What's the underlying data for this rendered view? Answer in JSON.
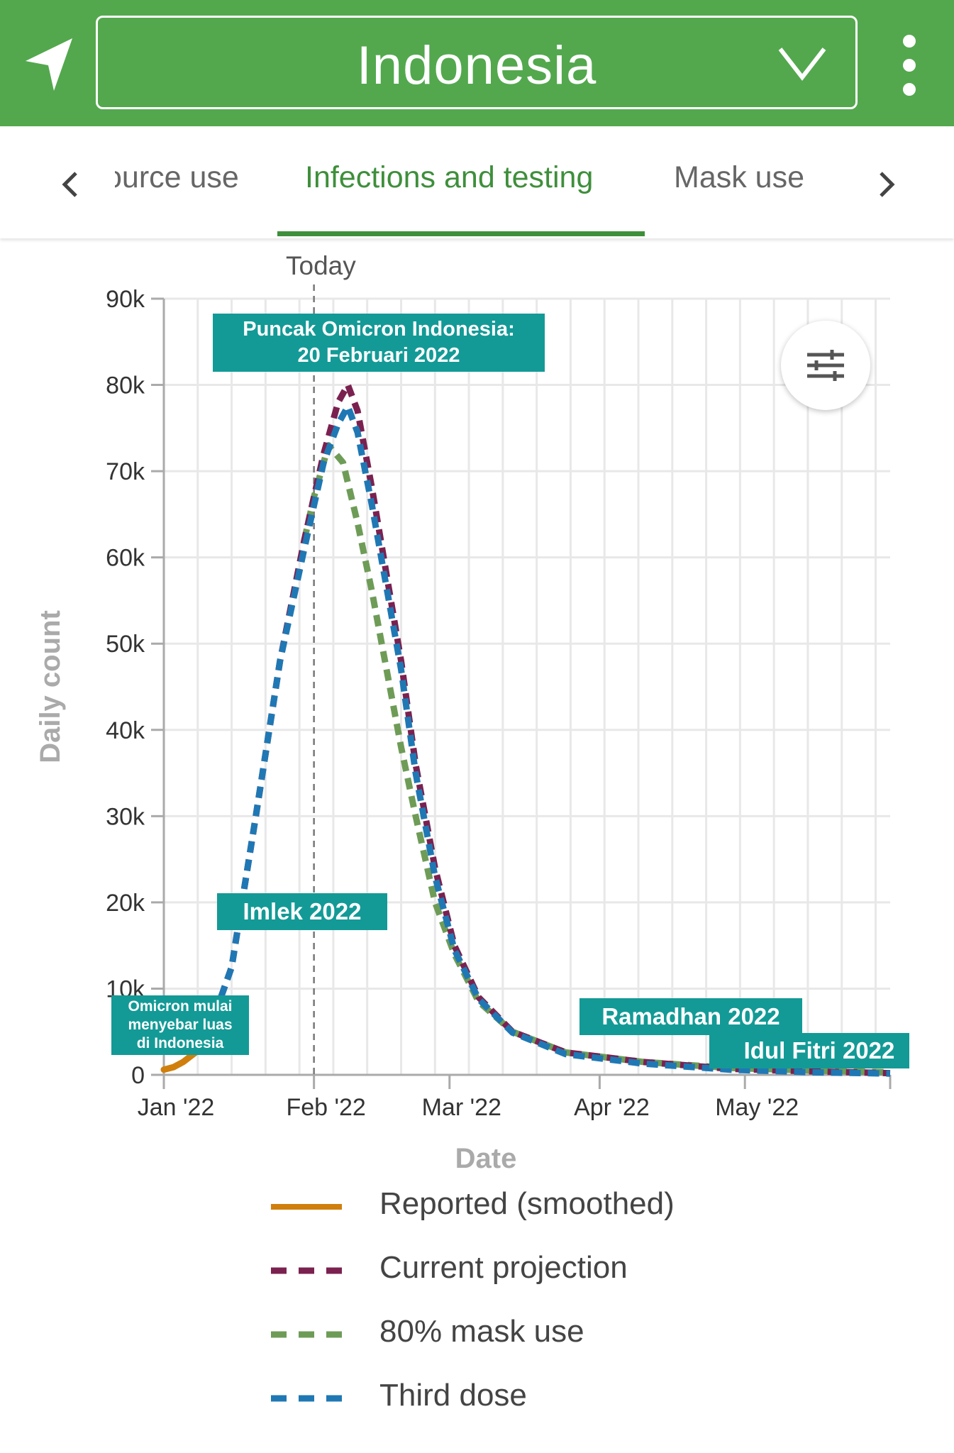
{
  "appbar": {
    "country": "Indonesia",
    "background": "#53a84e",
    "icons": {
      "nav": "navigation-arrow-icon",
      "dropdown": "chevron-down-icon",
      "more": "more-vertical-icon"
    }
  },
  "tabs": {
    "items": [
      {
        "label": "Resource use",
        "visible_text": "ource use"
      },
      {
        "label": "Infections and testing",
        "active": true
      },
      {
        "label": "Mask use"
      }
    ],
    "accent": "#3e8f3b"
  },
  "chart": {
    "today_label": "Today",
    "annotations": {
      "peak": [
        "Puncak Omicron Indonesia:",
        "20 Februari 2022"
      ],
      "omicron_spread": [
        "Omicron mulai",
        "menyebar luas",
        "di Indonesia"
      ],
      "imlek": "Imlek 2022",
      "ramadhan": "Ramadhan 2022",
      "idul_fitri": "Idul Fitri 2022"
    },
    "annotation_color": "#139a96"
  },
  "chart_data": {
    "type": "line",
    "xlabel": "Date",
    "ylabel": "Daily count",
    "x_ticks": [
      "Jan '22",
      "Feb '22",
      "Mar '22",
      "Apr '22",
      "May '22"
    ],
    "y_ticks": [
      "0",
      "10k",
      "20k",
      "30k",
      "40k",
      "50k",
      "60k",
      "70k",
      "80k",
      "90k"
    ],
    "ylim": [
      0,
      90000
    ],
    "xlim": [
      "2022-01-01",
      "2022-05-31"
    ],
    "today": "2022-02-01",
    "grid": true,
    "series": [
      {
        "name": "Reported (smoothed)",
        "color": "#d07f0d",
        "style": "solid",
        "points": [
          [
            "2022-01-01",
            600
          ],
          [
            "2022-01-03",
            900
          ],
          [
            "2022-01-05",
            1500
          ],
          [
            "2022-01-08",
            2800
          ]
        ]
      },
      {
        "name": "Current projection",
        "color": "#7b2150",
        "style": "dashed",
        "points": [
          [
            "2022-01-09",
            3000
          ],
          [
            "2022-01-15",
            12500
          ],
          [
            "2022-01-20",
            30000
          ],
          [
            "2022-01-25",
            48000
          ],
          [
            "2022-01-30",
            62000
          ],
          [
            "2022-02-01",
            67000
          ],
          [
            "2022-02-03",
            72000
          ],
          [
            "2022-02-06",
            78000
          ],
          [
            "2022-02-08",
            80000
          ],
          [
            "2022-02-10",
            77000
          ],
          [
            "2022-02-13",
            68000
          ],
          [
            "2022-02-16",
            58000
          ],
          [
            "2022-02-19",
            48000
          ],
          [
            "2022-02-22",
            36000
          ],
          [
            "2022-02-26",
            24000
          ],
          [
            "2022-03-02",
            15000
          ],
          [
            "2022-03-07",
            9000
          ],
          [
            "2022-03-14",
            5000
          ],
          [
            "2022-03-25",
            2600
          ],
          [
            "2022-04-10",
            1500
          ],
          [
            "2022-04-28",
            700
          ],
          [
            "2022-05-15",
            400
          ],
          [
            "2022-05-31",
            200
          ]
        ]
      },
      {
        "name": "80% mask use",
        "color": "#6e9c57",
        "style": "dashed",
        "points": [
          [
            "2022-01-30",
            62000
          ],
          [
            "2022-02-01",
            67000
          ],
          [
            "2022-02-04",
            73000
          ],
          [
            "2022-02-07",
            71000
          ],
          [
            "2022-02-10",
            64000
          ],
          [
            "2022-02-13",
            56000
          ],
          [
            "2022-02-16",
            47000
          ],
          [
            "2022-02-19",
            38000
          ],
          [
            "2022-02-22",
            30000
          ],
          [
            "2022-02-26",
            20000
          ],
          [
            "2022-03-02",
            14000
          ],
          [
            "2022-03-07",
            8500
          ],
          [
            "2022-03-14",
            5000
          ],
          [
            "2022-03-25",
            2600
          ],
          [
            "2022-04-10",
            1500
          ],
          [
            "2022-04-28",
            800
          ],
          [
            "2022-05-15",
            500
          ],
          [
            "2022-05-31",
            300
          ]
        ]
      },
      {
        "name": "Third dose",
        "color": "#1f78b4",
        "style": "dashed",
        "points": [
          [
            "2022-01-09",
            3000
          ],
          [
            "2022-01-15",
            12500
          ],
          [
            "2022-01-20",
            30000
          ],
          [
            "2022-01-25",
            48000
          ],
          [
            "2022-01-30",
            61000
          ],
          [
            "2022-02-01",
            66000
          ],
          [
            "2022-02-03",
            71000
          ],
          [
            "2022-02-06",
            75500
          ],
          [
            "2022-02-08",
            77500
          ],
          [
            "2022-02-10",
            74500
          ],
          [
            "2022-02-13",
            66000
          ],
          [
            "2022-02-16",
            56500
          ],
          [
            "2022-02-19",
            47000
          ],
          [
            "2022-02-22",
            35000
          ],
          [
            "2022-02-26",
            23000
          ],
          [
            "2022-03-02",
            14500
          ],
          [
            "2022-03-07",
            8800
          ],
          [
            "2022-03-14",
            4900
          ],
          [
            "2022-03-25",
            2400
          ],
          [
            "2022-04-10",
            1300
          ],
          [
            "2022-04-28",
            600
          ],
          [
            "2022-05-15",
            300
          ],
          [
            "2022-05-31",
            150
          ]
        ]
      }
    ]
  }
}
